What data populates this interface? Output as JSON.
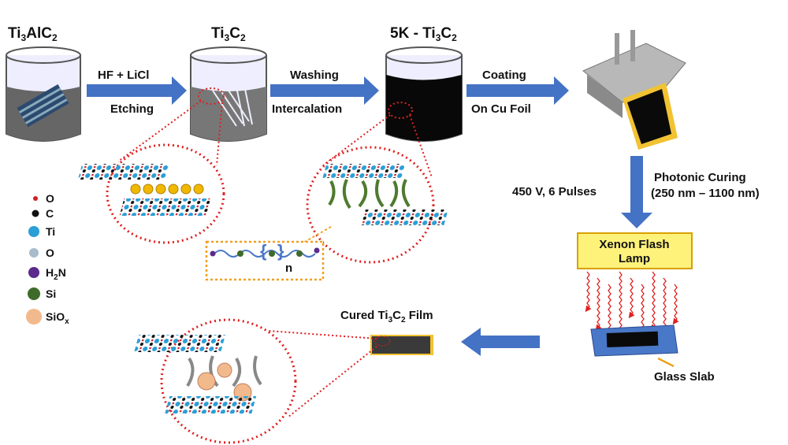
{
  "steps": {
    "start": {
      "a": "Ti",
      "a_sub": "3",
      "b": "AlC",
      "b_sub": "2"
    },
    "etched": {
      "a": "Ti",
      "a_sub": "3",
      "b": "C",
      "b_sub": "2"
    },
    "intercalated": {
      "prefix": "5K - Ti",
      "a_sub": "3",
      "b": "C",
      "b_sub": "2"
    }
  },
  "arrows": {
    "etch": {
      "top": "HF + LiCl",
      "bottom": "Etching"
    },
    "wash": {
      "top": "Washing",
      "bottom": "Intercalation"
    },
    "coat": {
      "top": "Coating",
      "bottom": "On Cu Foil"
    }
  },
  "curing": {
    "conditions": "450 V, 6 Pulses",
    "title": "Photonic Curing",
    "range": "(250 nm – 1100 nm)",
    "lamp_line1": "Xenon Flash",
    "lamp_line2": "Lamp",
    "substrate": "Glass Slab"
  },
  "product": {
    "a": "Cured Ti",
    "a_sub": "3",
    "b": "C",
    "b_sub": "2",
    "c": " Film"
  },
  "polymer": {
    "repeat": "n"
  },
  "legend": [
    {
      "label": "O",
      "color": "#d0202a"
    },
    {
      "label": "C",
      "color": "#111111"
    },
    {
      "label": "Ti",
      "color": "#2a9fd6"
    },
    {
      "label": "O",
      "color": "#a9bccb"
    },
    {
      "label": "H",
      "sub": "2",
      "after": "N",
      "color": "#5b2a8c"
    },
    {
      "label": "Si",
      "color": "#3f6b2a"
    },
    {
      "label": "SiO",
      "sub": "x",
      "color": "#f2b98c"
    }
  ],
  "colors": {
    "arrow": "#4472c4",
    "dotted_circle": "#e02020",
    "dotted_box": "#f0a020",
    "lamp": "#fff27a",
    "slab": "#4a78c8"
  }
}
